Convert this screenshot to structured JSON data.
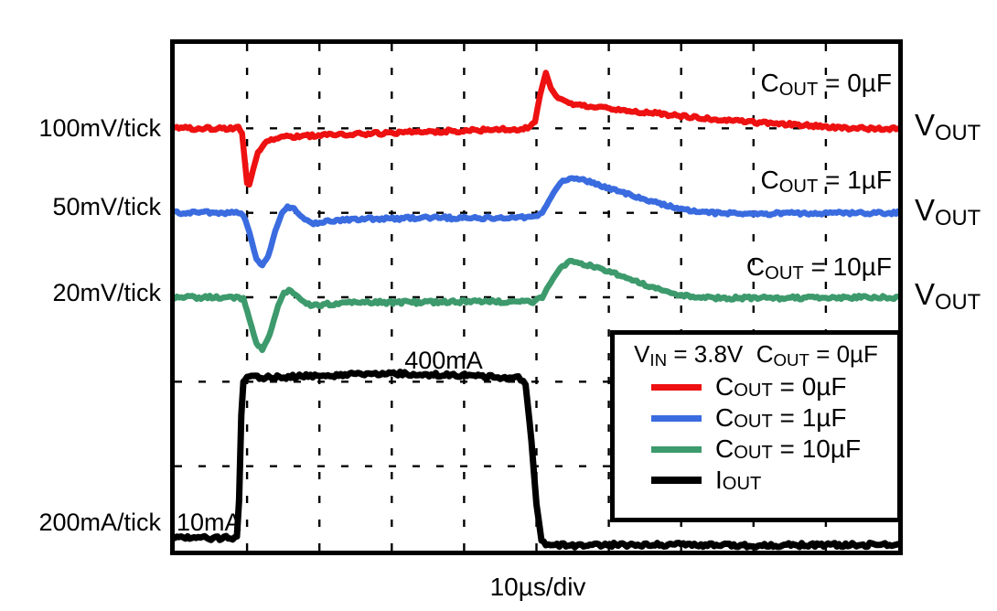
{
  "page": {
    "background": "#ffffff",
    "grid_color": "#000000",
    "border_color": "#000000"
  },
  "chart_data": {
    "type": "line",
    "style": "oscilloscope-load-transient",
    "grid": "dashed",
    "x_axis": {
      "label": "10µs/div",
      "divisions": 10,
      "us_per_div": 10
    },
    "y_axis": {
      "divisions": 6
    },
    "legend_title": {
      "p1": "V",
      "s1": "IN",
      "p2": " = 3.8V  C",
      "s2": "OUT",
      "p3": " = 0µF"
    },
    "series": [
      {
        "id": "vout-cout-0uF",
        "color": "#ee1111",
        "scale": "100mV/tick",
        "baseline_div": 1,
        "label": {
          "pre": "C",
          "sub": "OUT",
          "post": " = 0µF"
        },
        "signal": {
          "pre": "V",
          "sub": "OUT"
        },
        "points": [
          [
            0,
            1.0
          ],
          [
            0.8,
            1.0
          ],
          [
            0.88,
            1.0
          ],
          [
            0.93,
            1.05
          ],
          [
            0.96,
            1.3
          ],
          [
            1.0,
            1.65
          ],
          [
            1.03,
            1.67
          ],
          [
            1.08,
            1.5
          ],
          [
            1.15,
            1.28
          ],
          [
            1.27,
            1.16
          ],
          [
            1.43,
            1.11
          ],
          [
            1.75,
            1.09
          ],
          [
            2.4,
            1.07
          ],
          [
            3.1,
            1.05
          ],
          [
            3.9,
            1.03
          ],
          [
            4.6,
            1.01
          ],
          [
            4.88,
            1.0
          ],
          [
            4.98,
            0.92
          ],
          [
            5.05,
            0.6
          ],
          [
            5.13,
            0.34
          ],
          [
            5.2,
            0.53
          ],
          [
            5.3,
            0.65
          ],
          [
            5.45,
            0.7
          ],
          [
            5.75,
            0.74
          ],
          [
            6.25,
            0.79
          ],
          [
            6.85,
            0.84
          ],
          [
            7.45,
            0.89
          ],
          [
            8.05,
            0.93
          ],
          [
            8.65,
            0.96
          ],
          [
            9.1,
            0.99
          ],
          [
            9.5,
            1.0
          ],
          [
            10,
            1.0
          ]
        ]
      },
      {
        "id": "vout-cout-1uF",
        "color": "#3a6ce0",
        "scale": "50mV/tick",
        "baseline_div": 2,
        "label": {
          "pre": "C",
          "sub": "OUT",
          "post": " = 1µF"
        },
        "signal": {
          "pre": "V",
          "sub": "OUT"
        },
        "points": [
          [
            0,
            2.0
          ],
          [
            0.85,
            2.0
          ],
          [
            0.95,
            2.02
          ],
          [
            1.03,
            2.22
          ],
          [
            1.13,
            2.55
          ],
          [
            1.21,
            2.62
          ],
          [
            1.29,
            2.52
          ],
          [
            1.39,
            2.22
          ],
          [
            1.48,
            2.0
          ],
          [
            1.56,
            1.93
          ],
          [
            1.65,
            1.95
          ],
          [
            1.77,
            2.06
          ],
          [
            1.89,
            2.13
          ],
          [
            2.06,
            2.11
          ],
          [
            2.32,
            2.08
          ],
          [
            2.8,
            2.07
          ],
          [
            3.5,
            2.06
          ],
          [
            4.3,
            2.06
          ],
          [
            4.95,
            2.05
          ],
          [
            5.08,
            2.0
          ],
          [
            5.2,
            1.82
          ],
          [
            5.33,
            1.64
          ],
          [
            5.46,
            1.59
          ],
          [
            5.62,
            1.6
          ],
          [
            5.82,
            1.66
          ],
          [
            6.12,
            1.74
          ],
          [
            6.47,
            1.83
          ],
          [
            6.82,
            1.92
          ],
          [
            7.12,
            1.97
          ],
          [
            7.47,
            2.0
          ],
          [
            7.82,
            2.01
          ],
          [
            8.32,
            2.01
          ],
          [
            9.0,
            2.0
          ],
          [
            10,
            2.0
          ]
        ]
      },
      {
        "id": "vout-cout-10uF",
        "color": "#3d9a6c",
        "scale": "20mV/tick",
        "baseline_div": 3,
        "label": {
          "pre": "C",
          "sub": "OUT",
          "post": " = 10µF"
        },
        "signal": {
          "pre": "V",
          "sub": "OUT"
        },
        "points": [
          [
            0,
            3.0
          ],
          [
            0.85,
            3.0
          ],
          [
            0.95,
            3.02
          ],
          [
            1.03,
            3.25
          ],
          [
            1.13,
            3.55
          ],
          [
            1.21,
            3.62
          ],
          [
            1.31,
            3.45
          ],
          [
            1.43,
            3.1
          ],
          [
            1.51,
            2.95
          ],
          [
            1.58,
            2.92
          ],
          [
            1.67,
            2.96
          ],
          [
            1.79,
            3.06
          ],
          [
            1.91,
            3.1
          ],
          [
            2.11,
            3.08
          ],
          [
            2.51,
            3.06
          ],
          [
            3.31,
            3.06
          ],
          [
            4.21,
            3.05
          ],
          [
            4.95,
            3.05
          ],
          [
            5.08,
            3.0
          ],
          [
            5.2,
            2.82
          ],
          [
            5.33,
            2.65
          ],
          [
            5.46,
            2.58
          ],
          [
            5.62,
            2.6
          ],
          [
            5.86,
            2.65
          ],
          [
            6.21,
            2.76
          ],
          [
            6.56,
            2.87
          ],
          [
            6.86,
            2.95
          ],
          [
            7.16,
            3.0
          ],
          [
            7.51,
            3.01
          ],
          [
            8.21,
            3.01
          ],
          [
            9.0,
            3.0
          ],
          [
            10,
            3.0
          ]
        ]
      },
      {
        "id": "iout",
        "color": "#000000",
        "scale": "200mA/tick",
        "baseline_div": 5.85,
        "signal": {
          "pre": "I",
          "sub": "OUT"
        },
        "high_level": "400mA",
        "low_level": "10mA",
        "points": [
          [
            0,
            5.85
          ],
          [
            0.8,
            5.85
          ],
          [
            0.86,
            5.83
          ],
          [
            0.89,
            5.4
          ],
          [
            0.92,
            4.4
          ],
          [
            0.95,
            4.0
          ],
          [
            1.0,
            3.94
          ],
          [
            1.2,
            3.95
          ],
          [
            1.6,
            3.94
          ],
          [
            2.0,
            3.93
          ],
          [
            2.5,
            3.91
          ],
          [
            2.9,
            3.9
          ],
          [
            3.3,
            3.91
          ],
          [
            3.7,
            3.92
          ],
          [
            4.1,
            3.93
          ],
          [
            4.5,
            3.95
          ],
          [
            4.75,
            3.96
          ],
          [
            4.85,
            4.02
          ],
          [
            4.93,
            4.7
          ],
          [
            5.0,
            5.45
          ],
          [
            5.07,
            5.88
          ],
          [
            5.13,
            5.93
          ],
          [
            5.5,
            5.94
          ],
          [
            6.1,
            5.93
          ],
          [
            7.0,
            5.93
          ],
          [
            8.0,
            5.94
          ],
          [
            9.0,
            5.93
          ],
          [
            10,
            5.93
          ]
        ]
      }
    ],
    "annotations": [
      {
        "text": "400mA"
      },
      {
        "text": "10mA"
      }
    ]
  }
}
